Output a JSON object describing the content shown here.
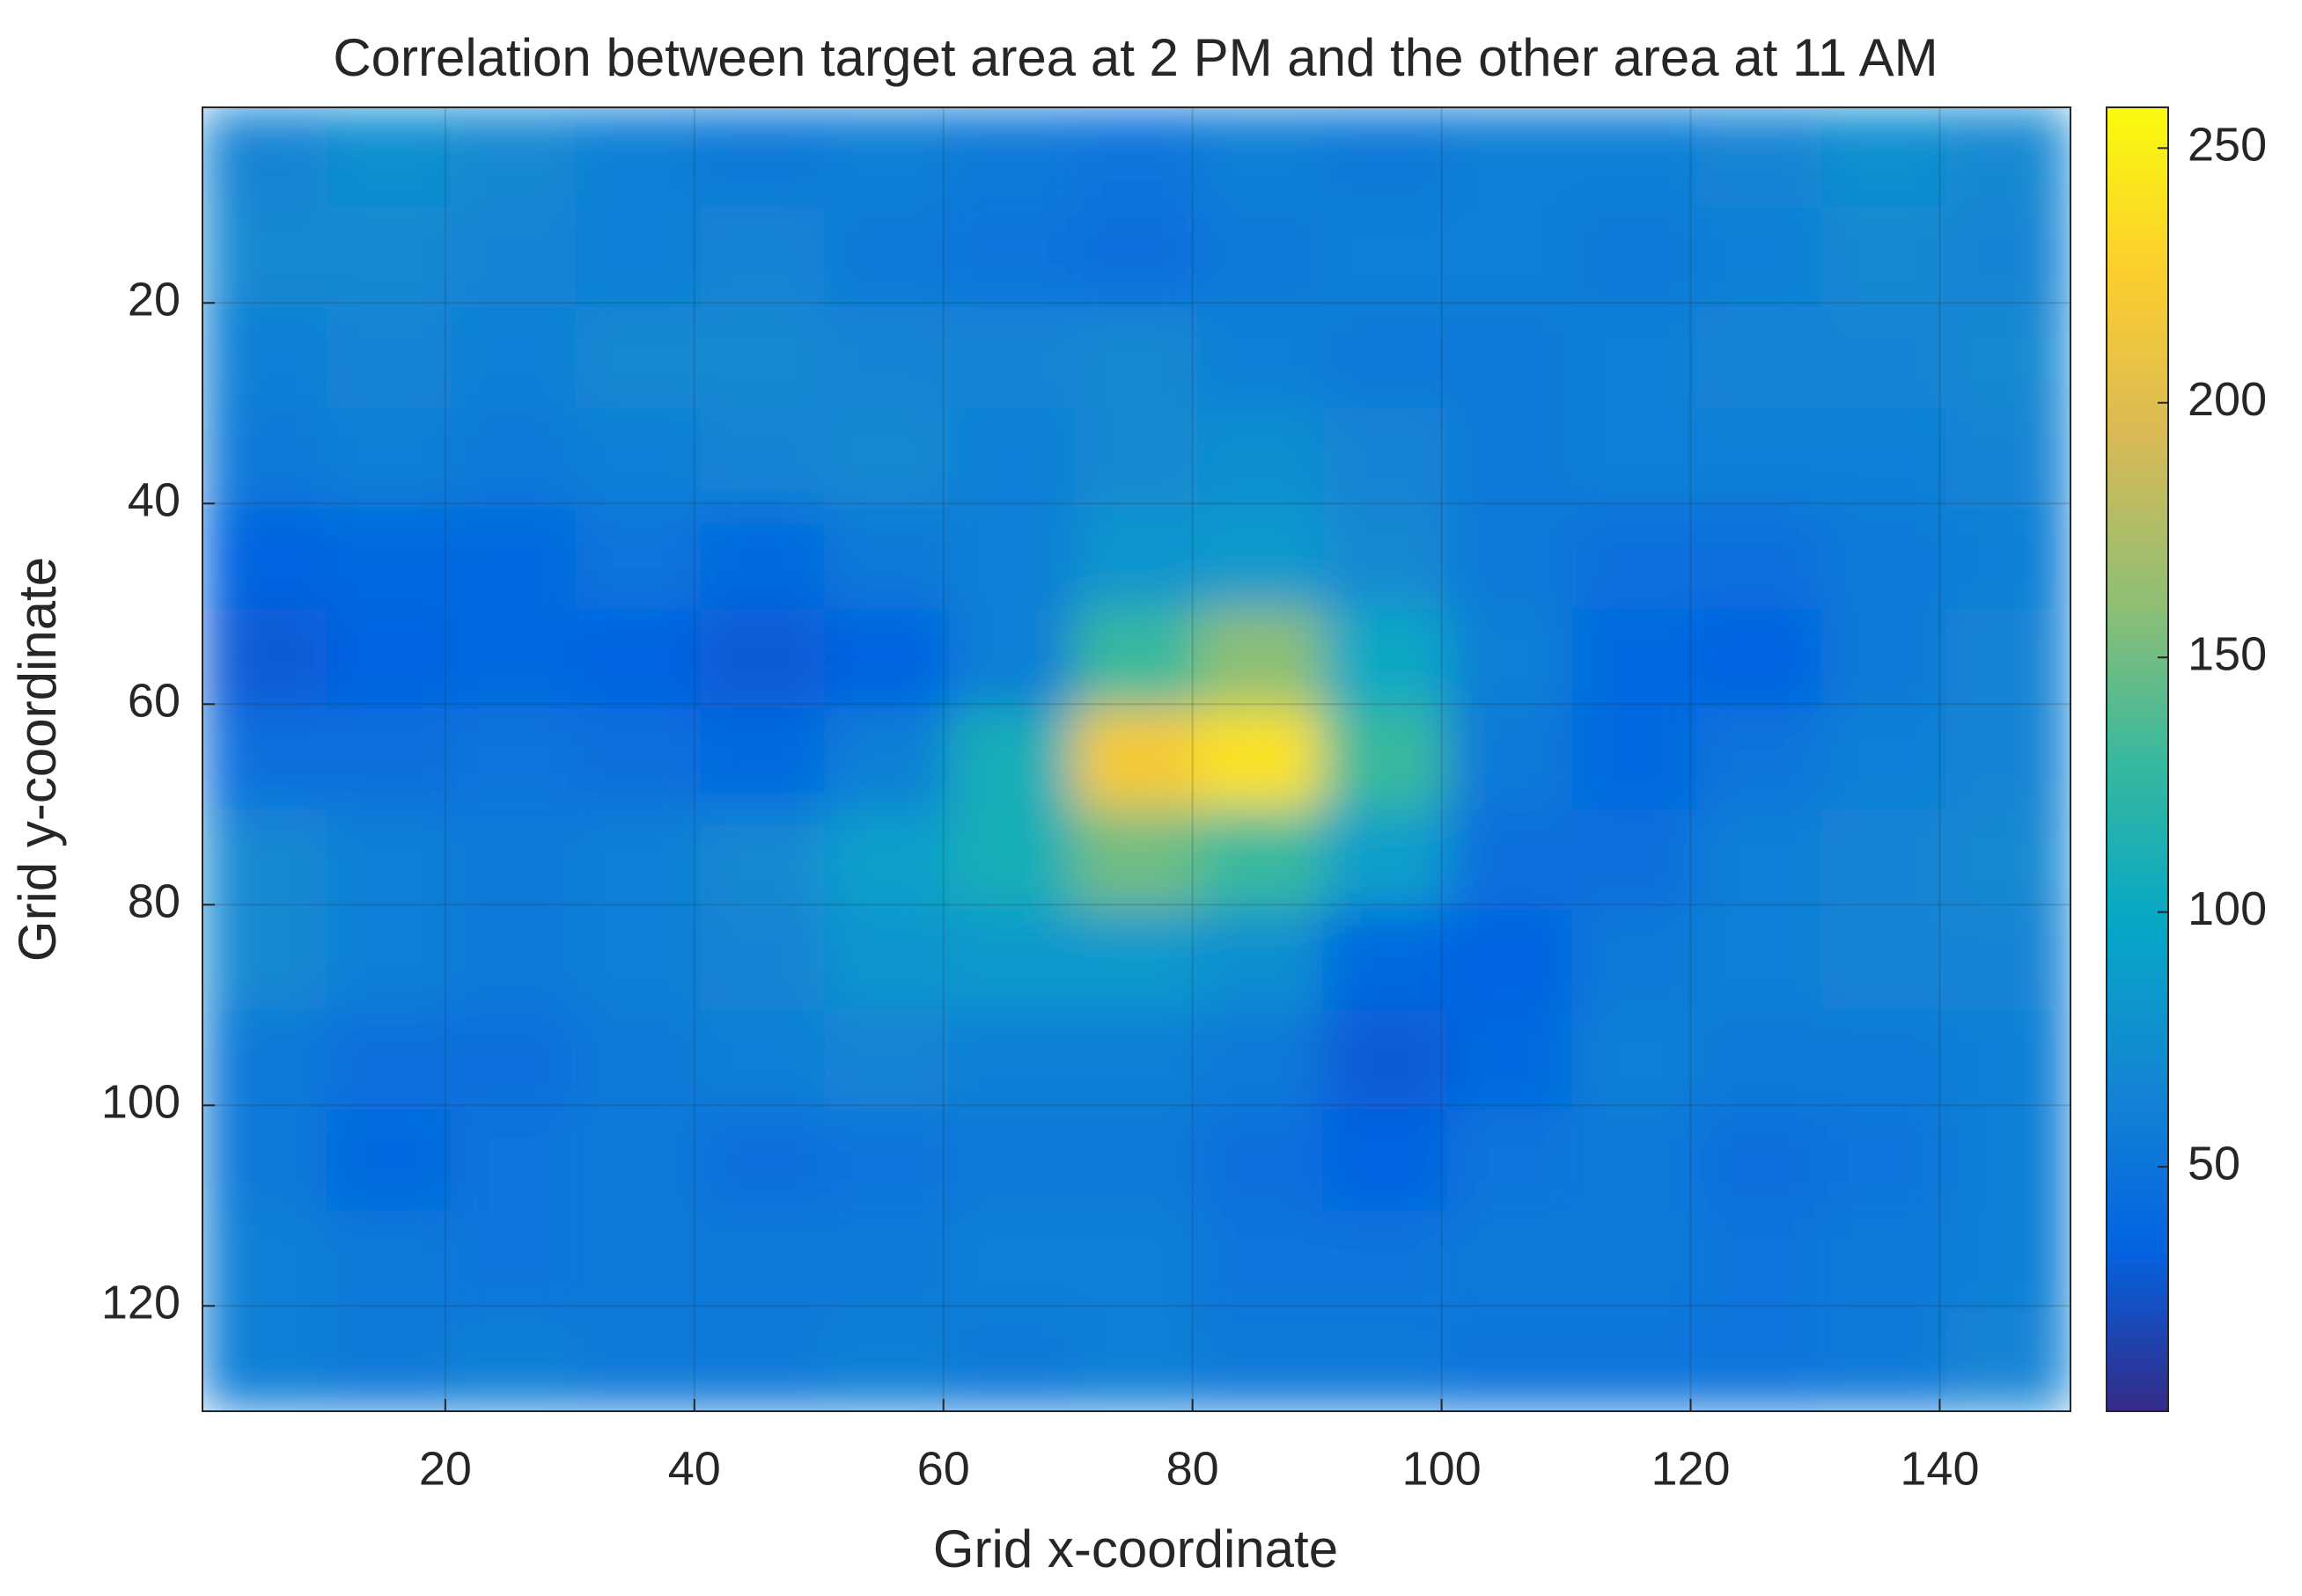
{
  "chart_data": {
    "type": "heatmap",
    "title": "Correlation between target area at 2 PM and the other area at 11 AM",
    "x_label": "Grid x-coordinate",
    "y_label": "Grid y-coordinate",
    "x": [
      5.5,
      15.5,
      25.5,
      35.5,
      45.5,
      55.5,
      65.5,
      75.5,
      85.5,
      95.5,
      105.5,
      115.5,
      125.5,
      135.5,
      145.5
    ],
    "y": [
      5.5,
      15.5,
      25.5,
      35.5,
      45.5,
      55.5,
      65.5,
      75.5,
      85.5,
      95.5,
      105.5,
      115.5,
      125.5
    ],
    "z": [
      [
        65,
        75,
        70,
        60,
        55,
        60,
        55,
        50,
        60,
        55,
        60,
        60,
        65,
        75,
        70
      ],
      [
        70,
        70,
        65,
        60,
        65,
        55,
        50,
        45,
        55,
        60,
        60,
        55,
        60,
        70,
        65
      ],
      [
        60,
        65,
        60,
        70,
        70,
        65,
        65,
        70,
        60,
        55,
        55,
        60,
        65,
        65,
        70
      ],
      [
        55,
        60,
        55,
        60,
        65,
        70,
        60,
        70,
        75,
        65,
        55,
        60,
        60,
        60,
        65
      ],
      [
        35,
        40,
        40,
        50,
        40,
        55,
        60,
        80,
        85,
        70,
        55,
        45,
        45,
        55,
        60
      ],
      [
        30,
        35,
        40,
        35,
        30,
        35,
        60,
        130,
        160,
        100,
        60,
        40,
        35,
        55,
        65
      ],
      [
        45,
        45,
        50,
        45,
        40,
        60,
        110,
        220,
        240,
        130,
        55,
        40,
        50,
        60,
        65
      ],
      [
        70,
        60,
        55,
        60,
        70,
        90,
        110,
        150,
        130,
        90,
        45,
        45,
        60,
        65,
        70
      ],
      [
        70,
        60,
        55,
        60,
        65,
        80,
        85,
        85,
        75,
        40,
        35,
        55,
        60,
        65,
        65
      ],
      [
        55,
        45,
        45,
        55,
        60,
        65,
        60,
        60,
        55,
        30,
        40,
        60,
        55,
        55,
        60
      ],
      [
        55,
        40,
        50,
        55,
        45,
        50,
        55,
        55,
        45,
        35,
        50,
        55,
        45,
        50,
        60
      ],
      [
        60,
        55,
        50,
        55,
        55,
        55,
        60,
        60,
        50,
        50,
        55,
        55,
        50,
        55,
        60
      ],
      [
        60,
        55,
        60,
        55,
        55,
        60,
        55,
        60,
        55,
        55,
        50,
        50,
        50,
        55,
        65
      ]
    ],
    "xlim": [
      0.5,
      150.5
    ],
    "xticks": [
      20,
      40,
      60,
      80,
      100,
      120,
      140
    ],
    "ylim": [
      0.5,
      130.5
    ],
    "yticks": [
      20,
      40,
      60,
      80,
      100,
      120
    ],
    "y_reversed": true,
    "clim": [
      2,
      258
    ],
    "cticks": [
      50,
      100,
      150,
      200,
      250
    ],
    "colormap": [
      "#352a87",
      "#0363e1",
      "#1485d4",
      "#06a7c6",
      "#38b99e",
      "#92bf73",
      "#d9ba56",
      "#fcce2e",
      "#f9fb0e"
    ],
    "grid": true
  }
}
